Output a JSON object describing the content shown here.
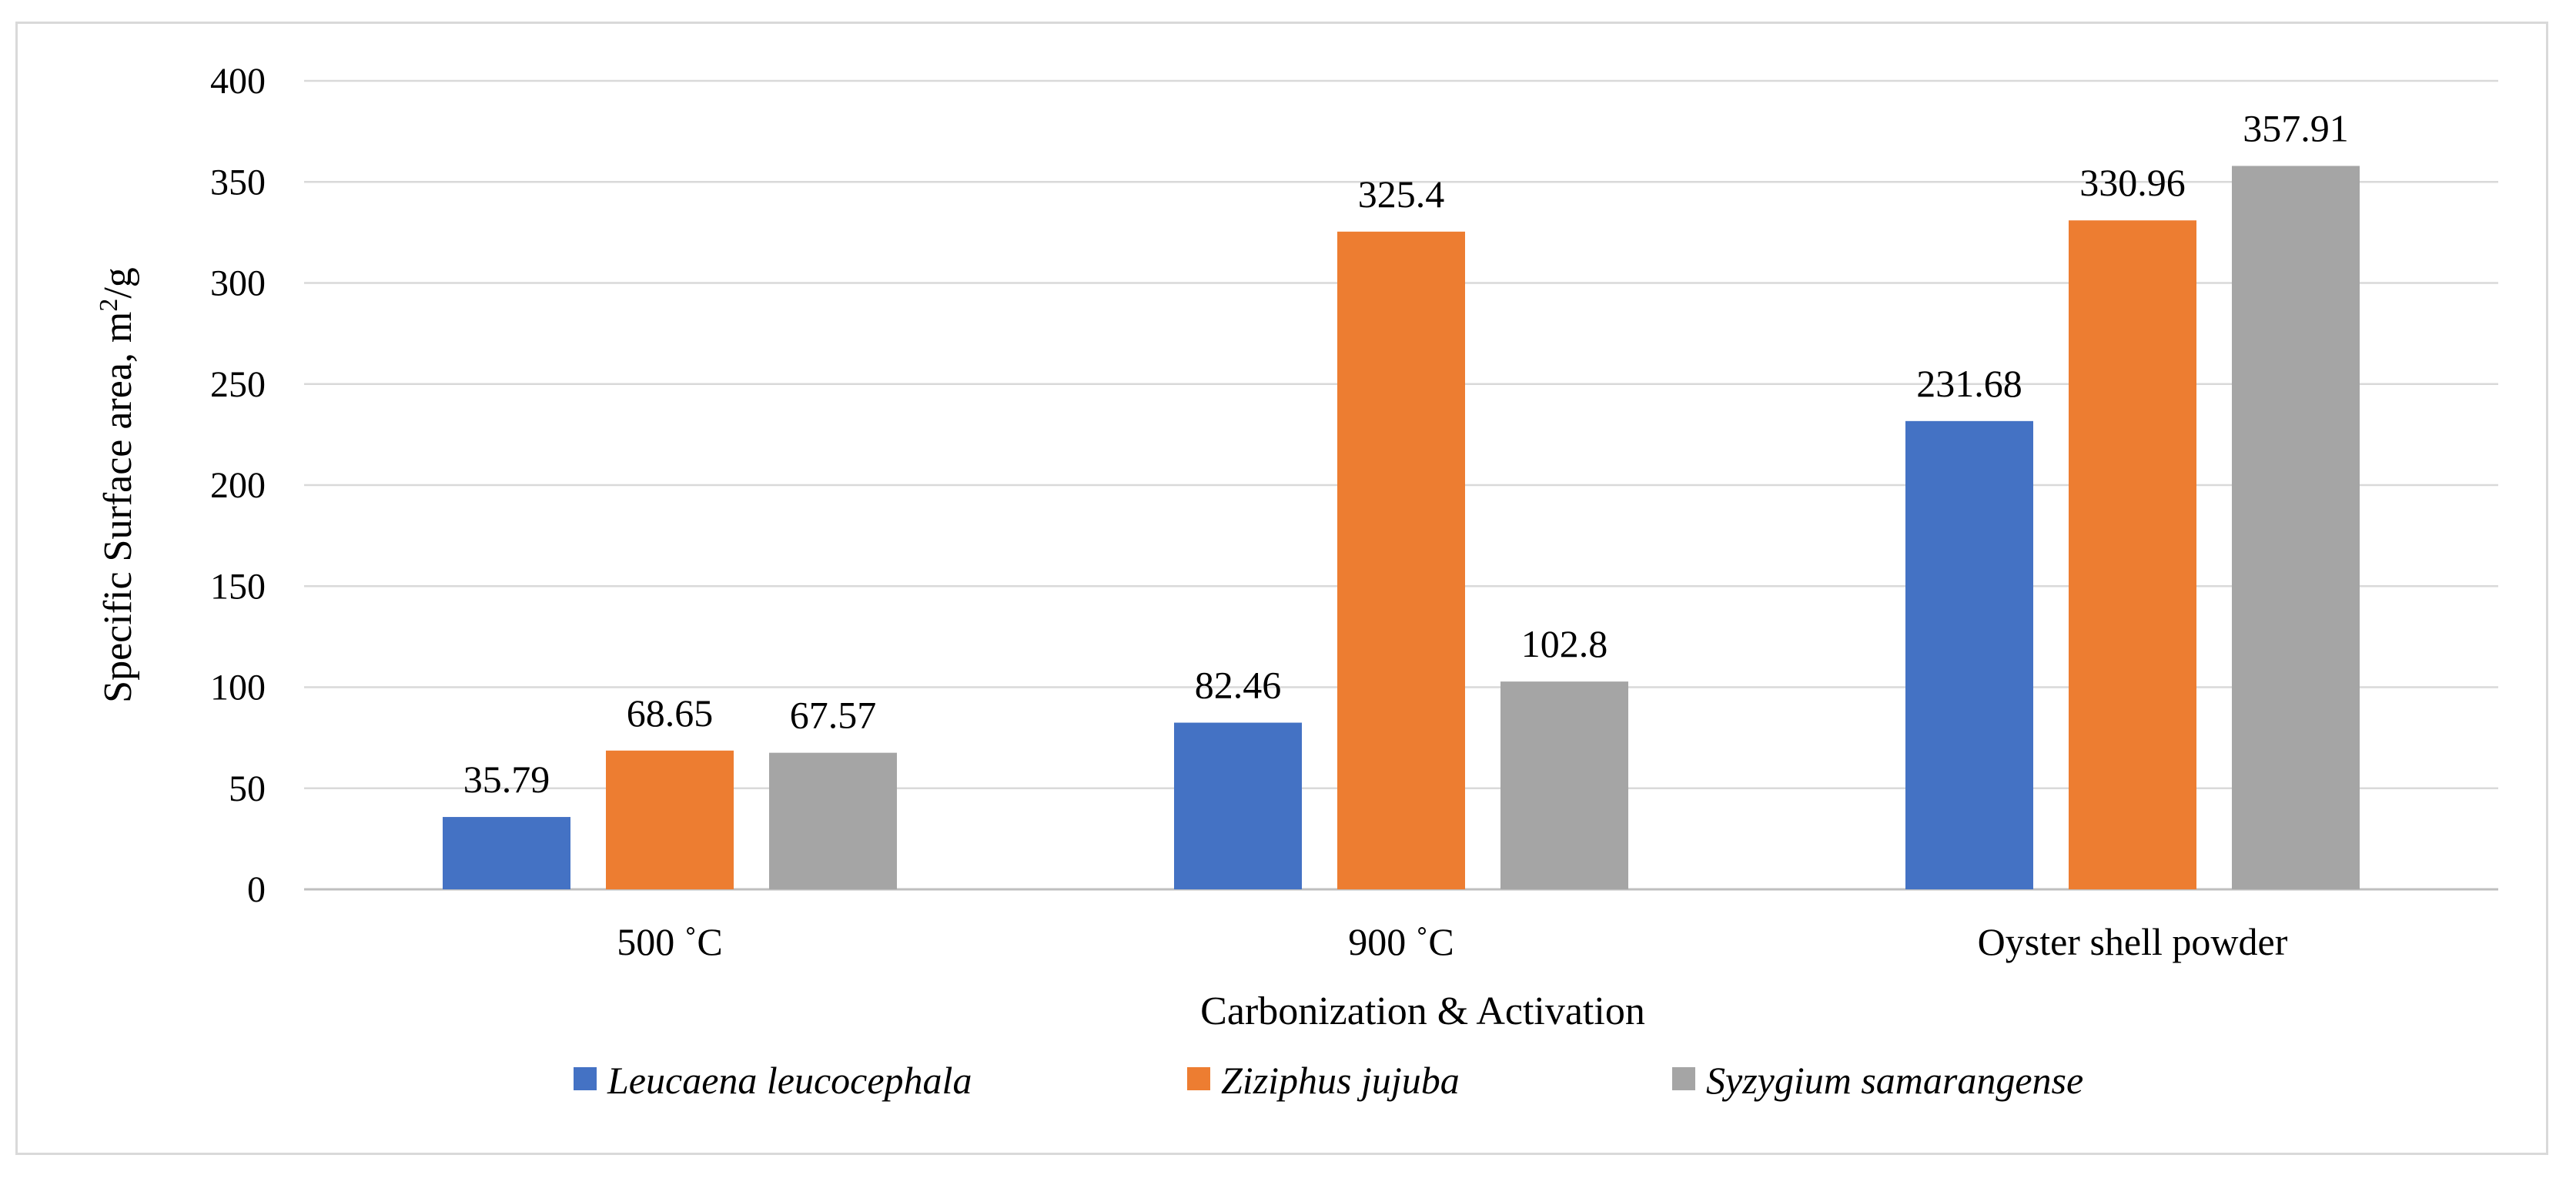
{
  "chart_data": {
    "type": "bar",
    "title": "",
    "xlabel": "Carbonization & Activation",
    "ylabel": "Specific Surface area, m2/g",
    "ylim": [
      0,
      400
    ],
    "yticks": [
      0,
      50,
      100,
      150,
      200,
      250,
      300,
      350,
      400
    ],
    "categories": [
      "500 ˚C",
      "900 ˚C",
      "Oyster shell powder"
    ],
    "series": [
      {
        "name": "Leucaena leucocephala",
        "color": "#4472C4",
        "values": [
          35.79,
          82.46,
          231.68
        ],
        "labels": [
          "35.79",
          "82.46",
          "231.68"
        ]
      },
      {
        "name": "Ziziphus jujuba",
        "color": "#ED7D31",
        "values": [
          68.65,
          325.4,
          330.96
        ],
        "labels": [
          "68.65",
          "325.4",
          "330.96"
        ]
      },
      {
        "name": "Syzygium samarangense",
        "color": "#A5A5A5",
        "values": [
          67.57,
          102.8,
          357.91
        ],
        "labels": [
          "67.57",
          "102.8",
          "357.91"
        ]
      }
    ],
    "grid": true,
    "legend_position": "bottom"
  }
}
